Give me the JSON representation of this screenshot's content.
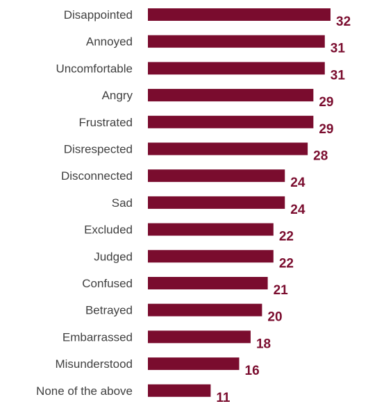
{
  "chart_data": {
    "type": "bar",
    "orientation": "horizontal",
    "title": "",
    "xlabel": "",
    "ylabel": "",
    "categories": [
      "Disappointed",
      "Annoyed",
      "Uncomfortable",
      "Angry",
      "Frustrated",
      "Disrespected",
      "Disconnected",
      "Sad",
      "Excluded",
      "Judged",
      "Confused",
      "Betrayed",
      "Embarrassed",
      "Misunderstood",
      "None of the above"
    ],
    "values": [
      32,
      31,
      31,
      29,
      29,
      28,
      24,
      24,
      22,
      22,
      21,
      20,
      18,
      16,
      11
    ],
    "data_labels": true,
    "grid": false,
    "legend": "none",
    "xlim": [
      0,
      32
    ],
    "bar_color": "#7a0c2e",
    "label_color": "#7a0c2e"
  }
}
